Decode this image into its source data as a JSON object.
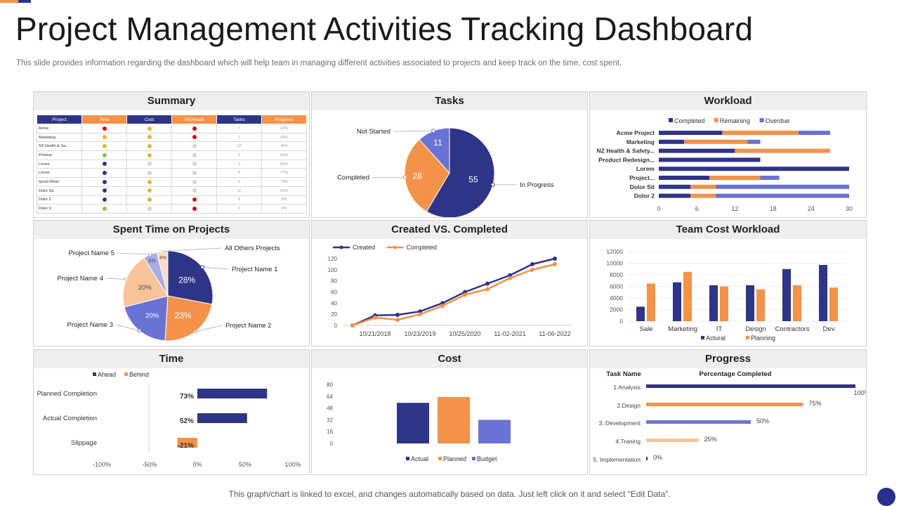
{
  "page": {
    "title": "Project Management Activities Tracking Dashboard",
    "subtitle": "This slide provides information regarding the dashboard which will help team in managing different activities associated to projects and keep track on the time, cost spent.",
    "footer": "This graph/chart is linked to excel,  and changes automatically based on data. Just left click on it and select “Edit Data”."
  },
  "colors": {
    "navy": "#2e3587",
    "orange": "#f4924a",
    "periwinkle": "#6a73d3",
    "peach": "#f7c49a",
    "green": "#8cc152",
    "yellow": "#e2b830",
    "red": "#c0101a",
    "gray": "#d4d4d4"
  },
  "panels": {
    "summary": "Summary",
    "tasks": "Tasks",
    "workload": "Workload",
    "spent_time": "Spent Time on Projects",
    "created_vs_completed": "Created VS. Completed",
    "team_cost": "Team Cost Workload",
    "time": "Time",
    "cost": "Cost",
    "progress": "Progress"
  },
  "summary_table": {
    "headers": [
      "Project",
      "Time",
      "Cost",
      "Workload",
      "Tasks",
      "Progress"
    ],
    "rows": [
      {
        "project": "Acme",
        "time": "red",
        "cost": "yellow",
        "workload": "red",
        "tasks": "7",
        "progress": "22%"
      },
      {
        "project": "Marketing",
        "time": "yellow",
        "cost": "yellow",
        "workload": "red",
        "tasks": "7",
        "progress": "43%"
      },
      {
        "project": "NZ Health & Sa...",
        "time": "yellow",
        "cost": "yellow",
        "workload": "gray",
        "tasks": "12",
        "progress": "45%"
      },
      {
        "project": "Product",
        "time": "green",
        "cost": "yellow",
        "workload": "gray",
        "tasks": "1",
        "progress": "50%"
      },
      {
        "project": "Lorem",
        "time": "navy",
        "cost": "gray",
        "workload": "gray",
        "tasks": "2",
        "progress": "65%"
      },
      {
        "project": "Lorem",
        "time": "navy",
        "cost": "gray",
        "workload": "gray",
        "tasks": "6",
        "progress": "77%"
      },
      {
        "project": "Ipsum Amet",
        "time": "navy",
        "cost": "yellow",
        "workload": "gray",
        "tasks": "6",
        "progress": "74%"
      },
      {
        "project": "Dolor Sit",
        "time": "navy",
        "cost": "yellow",
        "workload": "gray",
        "tasks": "11",
        "progress": "60%"
      },
      {
        "project": "Dolor 2",
        "time": "navy",
        "cost": "yellow",
        "workload": "red",
        "tasks": "8",
        "progress": "8%"
      },
      {
        "project": "Dolor 3",
        "time": "green",
        "cost": "gray",
        "workload": "red",
        "tasks": "3",
        "progress": "5%"
      }
    ]
  },
  "chart_data": [
    {
      "id": "tasks",
      "type": "pie",
      "categories": [
        "In Progress",
        "Completed",
        "Not Started"
      ],
      "values": [
        55,
        28,
        11
      ],
      "colors": [
        "#2e3587",
        "#f4924a",
        "#6a73d3"
      ]
    },
    {
      "id": "workload",
      "type": "bar",
      "orientation": "horizontal",
      "stacked": true,
      "categories": [
        "Acme Project",
        "Marketing",
        "NZ Health & Safety...",
        "Product Redesign...",
        "Lorem",
        "Project...",
        "Dolor Sit",
        "Dolor 2"
      ],
      "series": [
        {
          "name": "Completed",
          "color": "#2e3587",
          "values": [
            10,
            4,
            12,
            16,
            30,
            8,
            5,
            5
          ]
        },
        {
          "name": "Remaining",
          "color": "#f4924a",
          "values": [
            12,
            10,
            15,
            0,
            0,
            8,
            4,
            4
          ]
        },
        {
          "name": "Overdue",
          "color": "#6a73d3",
          "values": [
            5,
            2,
            0,
            0,
            0,
            3,
            21,
            21
          ]
        }
      ],
      "xlim": [
        0,
        30
      ],
      "xticks": [
        0,
        6,
        12,
        18,
        24,
        30
      ],
      "legend": "top"
    },
    {
      "id": "spent_time",
      "type": "pie",
      "categories": [
        "Project Name 1",
        "Project Name 2",
        "Project Name 3",
        "Project Name 4",
        "Project Name 5",
        "All Others Projects"
      ],
      "values": [
        28,
        23,
        20,
        20,
        5,
        4
      ],
      "labels": [
        "28%",
        "23%",
        "20%",
        "20%",
        "5%",
        "4%"
      ],
      "colors": [
        "#2e3587",
        "#f4924a",
        "#6a73d3",
        "#f7c49a",
        "#a7ace4",
        "#fbdcc4"
      ]
    },
    {
      "id": "created_vs_completed",
      "type": "line",
      "series": [
        {
          "name": "Created",
          "color": "#2e3587",
          "values": [
            0,
            18,
            19,
            25,
            40,
            60,
            75,
            90,
            110,
            120
          ]
        },
        {
          "name": "Completed",
          "color": "#f4924a",
          "values": [
            0,
            14,
            10,
            20,
            35,
            55,
            65,
            85,
            100,
            110
          ]
        }
      ],
      "xtick_labels": [
        "10/21/2018",
        "10/23/2019",
        "10/25/2020",
        "11-02-2021",
        "11-06-2022"
      ],
      "ylim": [
        0,
        120
      ],
      "yticks": [
        0,
        20,
        40,
        60,
        80,
        100,
        120
      ],
      "legend": "top-left"
    },
    {
      "id": "team_cost",
      "type": "bar",
      "categories": [
        "Sale",
        "Marketing",
        "IT",
        "Design",
        "Contractors",
        "Dev"
      ],
      "series": [
        {
          "name": "Actural",
          "color": "#2e3587",
          "values": [
            2500,
            6700,
            6200,
            6200,
            9000,
            9700
          ]
        },
        {
          "name": "Planning",
          "color": "#f4924a",
          "values": [
            6500,
            8500,
            6000,
            5500,
            6200,
            5800
          ]
        }
      ],
      "ylim": [
        0,
        12000
      ],
      "yticks": [
        0,
        2000,
        4000,
        6000,
        8000,
        10000,
        12000
      ],
      "legend": "bottom"
    },
    {
      "id": "time",
      "type": "bar",
      "orientation": "horizontal",
      "categories": [
        "Planned Completion",
        "Actual Completion",
        "Slippage"
      ],
      "values": [
        73,
        52,
        -21
      ],
      "labels": [
        "73%",
        "52%",
        "-21%"
      ],
      "series": [
        {
          "name": "Ahead",
          "color": "#2e3587"
        },
        {
          "name": "Behind",
          "color": "#f4924a"
        }
      ],
      "xlim": [
        -100,
        100
      ],
      "xtick_labels": [
        "-100%",
        "-50%",
        "0%",
        "50%",
        "100%"
      ],
      "legend": "top"
    },
    {
      "id": "cost",
      "type": "bar",
      "categories": [
        "Actual",
        "Planned",
        "Budget"
      ],
      "values": [
        55,
        63,
        32
      ],
      "colors": [
        "#2e3587",
        "#f4924a",
        "#6a73d3"
      ],
      "ylim": [
        0,
        80
      ],
      "yticks": [
        0,
        16,
        32,
        48,
        64,
        80
      ],
      "legend": "bottom"
    },
    {
      "id": "progress",
      "type": "bar",
      "orientation": "horizontal",
      "column_headers": [
        "Task Name",
        "Percentage Completed"
      ],
      "categories": [
        "1.Analysis",
        "2.Design",
        "3. Development",
        "4.Traning",
        "5. Implementation"
      ],
      "values": [
        100,
        75,
        50,
        25,
        0
      ],
      "labels": [
        "100%",
        "75%",
        "50%",
        "25%",
        "0%"
      ],
      "colors": [
        "#2e3587",
        "#f4924a",
        "#6a73d3",
        "#f7c49a",
        "#2e3587"
      ],
      "xlim": [
        0,
        100
      ]
    }
  ]
}
